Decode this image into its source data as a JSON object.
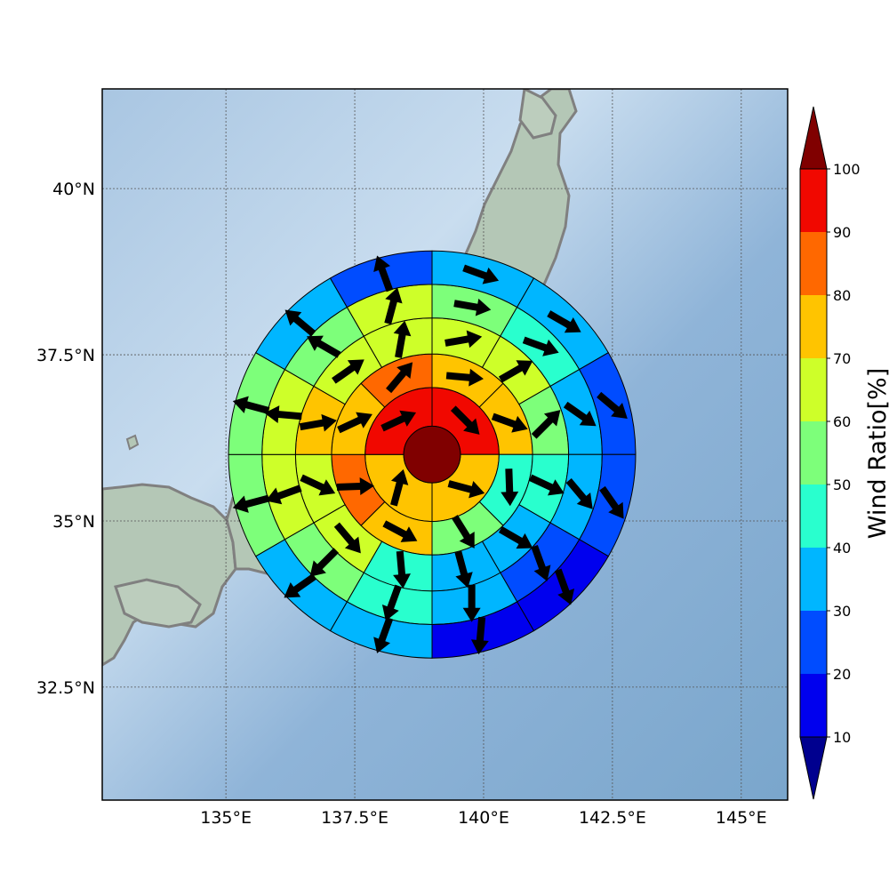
{
  "map": {
    "projection": "plate-carree",
    "lon_range": [
      132.6,
      145.9
    ],
    "lat_range": [
      30.8,
      41.5
    ],
    "lon_ticks": [
      {
        "value": 135,
        "label": "135°E"
      },
      {
        "value": 137.5,
        "label": "137.5°E"
      },
      {
        "value": 140,
        "label": "140°E"
      },
      {
        "value": 142.5,
        "label": "142.5°E"
      },
      {
        "value": 145,
        "label": "145°E"
      }
    ],
    "lat_ticks": [
      {
        "value": 40,
        "label": "40°N"
      },
      {
        "value": 37.5,
        "label": "37.5°N"
      },
      {
        "value": 35,
        "label": "35°N"
      },
      {
        "value": 32.5,
        "label": "32.5°N"
      }
    ],
    "gridlines": true,
    "coastline_color": "#808080",
    "ocean_color": "#8fb6d8",
    "land_color": "#b7c8b8"
  },
  "polar_grid": {
    "center": {
      "lon": 139.0,
      "lat": 36.0
    },
    "center_ratio": 100,
    "ring_radii_deg": [
      0.55,
      1.3,
      1.95,
      2.65,
      3.3,
      3.95
    ],
    "sectors_per_ring": [
      4,
      8,
      12,
      12,
      12
    ],
    "ratios": [
      [
        90,
        70,
        70,
        90
      ],
      [
        70,
        70,
        40,
        50,
        70,
        80,
        70,
        80
      ],
      [
        60,
        60,
        50,
        40,
        30,
        30,
        40,
        60,
        60,
        70,
        60,
        60
      ],
      [
        50,
        40,
        30,
        30,
        20,
        30,
        40,
        50,
        60,
        60,
        50,
        60
      ],
      [
        30,
        30,
        20,
        20,
        10,
        10,
        30,
        30,
        50,
        50,
        30,
        20
      ]
    ],
    "wind_dir_deg": [
      [
        135,
        105,
        15,
        65
      ],
      [
        95,
        110,
        178,
        148,
        118,
        88,
        65,
        40
      ],
      [
        80,
        60,
        45,
        115,
        120,
        165,
        175,
        140,
        115,
        80,
        55,
        10
      ],
      [
        100,
        110,
        125,
        140,
        160,
        180,
        200,
        225,
        250,
        275,
        300,
        15
      ],
      [
        110,
        120,
        130,
        145,
        160,
        185,
        200,
        235,
        255,
        285,
        310,
        340
      ]
    ]
  },
  "colorbar": {
    "label": "Wind Ratio[%]",
    "ticks": [
      "10",
      "20",
      "30",
      "40",
      "50",
      "60",
      "70",
      "80",
      "90",
      "100"
    ],
    "bins": [
      {
        "min": 10,
        "max": 20,
        "color": "#0000ee"
      },
      {
        "min": 20,
        "max": 30,
        "color": "#004cff"
      },
      {
        "min": 30,
        "max": 40,
        "color": "#00b6ff"
      },
      {
        "min": 40,
        "max": 50,
        "color": "#29ffce"
      },
      {
        "min": 50,
        "max": 60,
        "color": "#7dff7a"
      },
      {
        "min": 60,
        "max": 70,
        "color": "#ceff29"
      },
      {
        "min": 70,
        "max": 80,
        "color": "#ffc400"
      },
      {
        "min": 80,
        "max": 90,
        "color": "#ff6800"
      },
      {
        "min": 90,
        "max": 100,
        "color": "#f10800"
      }
    ],
    "under_color": "#00008f",
    "over_color": "#800000"
  }
}
